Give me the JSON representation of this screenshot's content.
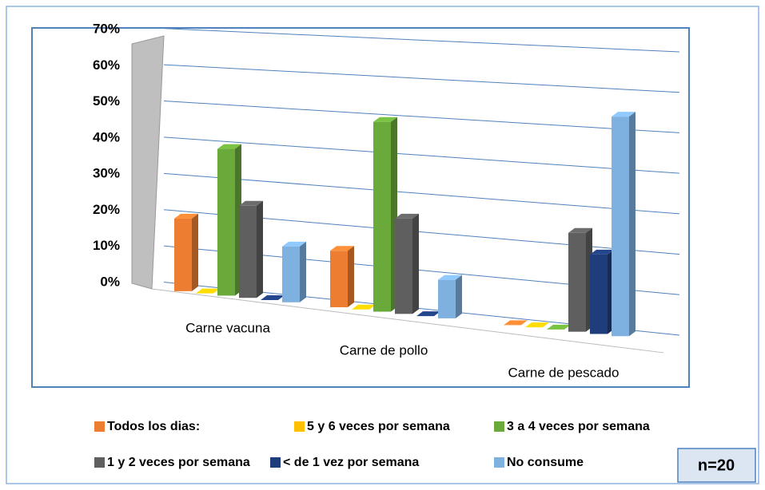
{
  "chart_data": {
    "type": "bar3d",
    "categories": [
      "Carne vacuna",
      "Carne de pollo",
      "Carne de pescado"
    ],
    "series": [
      {
        "name": "Todos los dias:",
        "color": "#ed7d31",
        "values": [
          20,
          15,
          0
        ]
      },
      {
        "name": "5 y 6 veces por semana",
        "color": "#ffc000",
        "values": [
          0,
          0,
          0
        ]
      },
      {
        "name": "3 a 4 veces por semana",
        "color": "#6aaa3a",
        "values": [
          40,
          50,
          0
        ]
      },
      {
        "name": "1 y 2 veces por semana",
        "color": "#5f5f5f",
        "values": [
          25,
          25,
          25
        ]
      },
      {
        "name": "< de 1 vez por semana",
        "color": "#1f3d7a",
        "values": [
          0,
          0,
          20
        ]
      },
      {
        "name": "No consume",
        "color": "#7eb0e0",
        "values": [
          15,
          10,
          55
        ]
      }
    ],
    "ylim": [
      0,
      70
    ],
    "yticks": [
      {
        "value": 0,
        "label": "0%"
      },
      {
        "value": 10,
        "label": "10%"
      },
      {
        "value": 20,
        "label": "20%"
      },
      {
        "value": 30,
        "label": "30%"
      },
      {
        "value": 40,
        "label": "40%"
      },
      {
        "value": 50,
        "label": "50%"
      },
      {
        "value": 60,
        "label": "60%"
      },
      {
        "value": 70,
        "label": "70%"
      }
    ],
    "grid": true,
    "annotation": "n=20"
  }
}
